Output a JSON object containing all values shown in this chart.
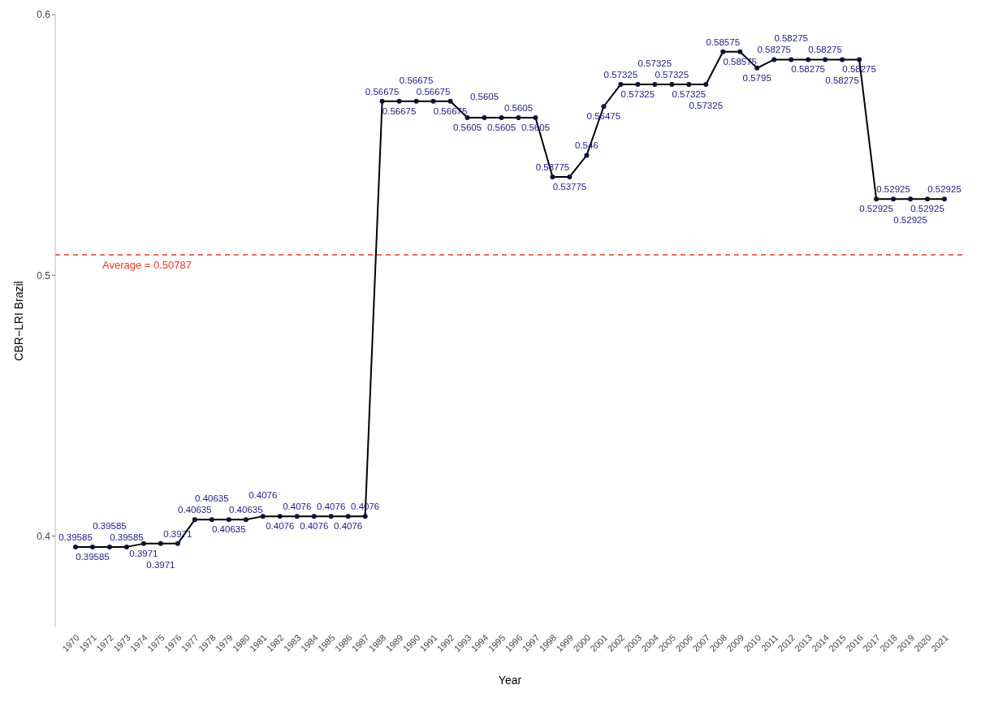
{
  "chart_data": {
    "type": "line",
    "xlabel": "Year",
    "ylabel": "CBR−LRI Brazil",
    "categories": [
      "1970",
      "1971",
      "1972",
      "1973",
      "1974",
      "1975",
      "1976",
      "1977",
      "1978",
      "1979",
      "1980",
      "1981",
      "1982",
      "1983",
      "1984",
      "1985",
      "1986",
      "1987",
      "1988",
      "1989",
      "1990",
      "1991",
      "1992",
      "1993",
      "1994",
      "1995",
      "1996",
      "1997",
      "1998",
      "1999",
      "2000",
      "2001",
      "2002",
      "2003",
      "2004",
      "2005",
      "2006",
      "2007",
      "2008",
      "2009",
      "2010",
      "2011",
      "2012",
      "2013",
      "2014",
      "2015",
      "2016",
      "2017",
      "2018",
      "2019",
      "2020",
      "2021"
    ],
    "series": [
      {
        "color": "#000000",
        "values": [
          0.39585,
          0.39585,
          0.39585,
          0.39585,
          0.3971,
          0.3971,
          0.3971,
          0.40635,
          0.40635,
          0.40635,
          0.40635,
          0.4076,
          0.4076,
          0.4076,
          0.4076,
          0.4076,
          0.4076,
          0.4076,
          0.56675,
          0.56675,
          0.56675,
          0.56675,
          0.56675,
          0.5605,
          0.5605,
          0.5605,
          0.5605,
          0.5605,
          0.53775,
          0.53775,
          0.546,
          0.56475,
          0.57325,
          0.57325,
          0.57325,
          0.57325,
          0.57325,
          0.57325,
          0.58575,
          0.58575,
          0.5795,
          0.58275,
          0.58275,
          0.58275,
          0.58275,
          0.58275,
          0.58275,
          0.52925,
          0.52925,
          0.52925,
          0.52925,
          0.52925
        ]
      }
    ],
    "ylim": [
      0.365,
      0.6
    ],
    "yticks": [
      0.4,
      0.5,
      0.6
    ],
    "marker": "circle",
    "line_style": "solid",
    "data_labels": true,
    "ref_lines": [
      {
        "axis": "y",
        "value": 0.50787,
        "label": "Average = 0.50787",
        "color": "#e8392f",
        "line_style": "dashed"
      }
    ]
  }
}
